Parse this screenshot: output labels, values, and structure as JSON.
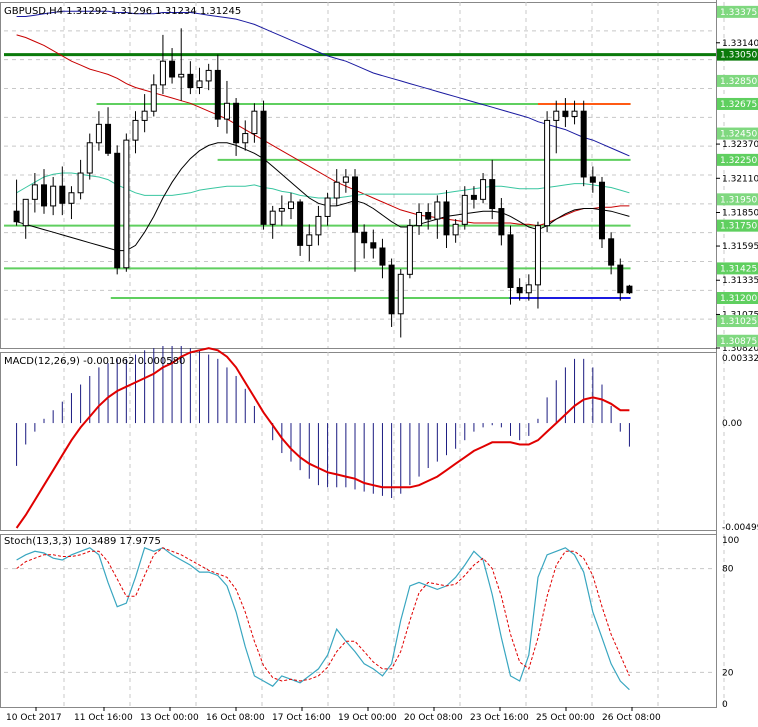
{
  "chart_data": [
    {
      "type": "candlestick",
      "title": "GBPUSD,H4  1.31292 1.31296 1.31234 1.31245",
      "symbol": "GBPUSD,H4",
      "ohlc_header": "1.31292 1.31296 1.31234 1.31245",
      "ylim": [
        1.3082,
        1.3345
      ],
      "y_ticks": [
        "1.33140",
        "1.32370",
        "1.32110",
        "1.31850",
        "1.31595",
        "1.31335",
        "1.31075",
        "1.30820"
      ],
      "level_labels": [
        {
          "label": "1.33375",
          "color": "#7fd87f",
          "drawn": false
        },
        {
          "label": "1.33050",
          "color": "#0a7a0a",
          "drawn": true
        },
        {
          "label": "1.32850",
          "color": "#7fd87f",
          "drawn": false
        },
        {
          "label": "1.32675",
          "color": "#5fcf5f",
          "drawn": true
        },
        {
          "label": "1.32450",
          "color": "#7fd87f",
          "drawn": false
        },
        {
          "label": "1.32250",
          "color": "#5fcf5f",
          "drawn": true
        },
        {
          "label": "1.31950",
          "color": "#7fd87f",
          "drawn": false
        },
        {
          "label": "1.31750",
          "color": "#5fcf5f",
          "drawn": true
        },
        {
          "label": "1.31425",
          "color": "#5fcf5f",
          "drawn": true
        },
        {
          "label": "1.31200",
          "color": "#5fcf5f",
          "drawn": true
        },
        {
          "label": "1.31025",
          "color": "#7fd87f",
          "drawn": false
        },
        {
          "label": "1.30875",
          "color": "#7fd87f",
          "drawn": false
        }
      ],
      "segments": [
        {
          "y": 1.3305,
          "x0": 0,
          "x1": 1.0,
          "color": "#0a7a0a"
        },
        {
          "y": 1.32675,
          "x0": 0.13,
          "x1": 0.88,
          "color": "#5fcf5f"
        },
        {
          "y": 1.32675,
          "x0": 0.75,
          "x1": 0.88,
          "color": "#ff5a14"
        },
        {
          "y": 1.3225,
          "x0": 0.3,
          "x1": 0.88,
          "color": "#5fcf5f"
        },
        {
          "y": 1.3175,
          "x0": 0.0,
          "x1": 0.88,
          "color": "#5fcf5f"
        },
        {
          "y": 1.31425,
          "x0": 0.0,
          "x1": 0.88,
          "color": "#5fcf5f"
        },
        {
          "y": 1.312,
          "x0": 0.15,
          "x1": 0.88,
          "color": "#5fcf5f"
        },
        {
          "y": 1.312,
          "x0": 0.71,
          "x1": 0.88,
          "color": "#1a1ae0"
        }
      ],
      "candles": [
        [
          1.3186,
          1.321,
          1.3178,
          1.3175
        ],
        [
          1.3175,
          1.318,
          1.3195,
          1.3165
        ],
        [
          1.3195,
          1.3215,
          1.3206,
          1.3185
        ],
        [
          1.3206,
          1.3218,
          1.319,
          1.3184
        ],
        [
          1.319,
          1.3212,
          1.3205,
          1.3183
        ],
        [
          1.3205,
          1.322,
          1.3192,
          1.3183
        ],
        [
          1.3192,
          1.3205,
          1.32,
          1.318
        ],
        [
          1.32,
          1.3225,
          1.3215,
          1.3195
        ],
        [
          1.3215,
          1.3245,
          1.3238,
          1.321
        ],
        [
          1.3238,
          1.3262,
          1.3252,
          1.3232
        ],
        [
          1.3252,
          1.3265,
          1.323,
          1.3228
        ],
        [
          1.323,
          1.3236,
          1.3143,
          1.3138
        ],
        [
          1.3143,
          1.3245,
          1.324,
          1.314
        ],
        [
          1.324,
          1.3262,
          1.3255,
          1.323
        ],
        [
          1.3255,
          1.3275,
          1.3262,
          1.3246
        ],
        [
          1.3262,
          1.329,
          1.3282,
          1.3258
        ],
        [
          1.3282,
          1.332,
          1.33,
          1.3275
        ],
        [
          1.33,
          1.331,
          1.3288,
          1.3283
        ],
        [
          1.3288,
          1.3325,
          1.329,
          1.327
        ],
        [
          1.329,
          1.33,
          1.328,
          1.3275
        ],
        [
          1.328,
          1.3295,
          1.3285,
          1.3275
        ],
        [
          1.3285,
          1.3298,
          1.3293,
          1.3278
        ],
        [
          1.3293,
          1.3305,
          1.3256,
          1.325
        ],
        [
          1.3256,
          1.3285,
          1.3268,
          1.3245
        ],
        [
          1.3268,
          1.3272,
          1.3238,
          1.3228
        ],
        [
          1.3238,
          1.3255,
          1.3245,
          1.3232
        ],
        [
          1.3245,
          1.3268,
          1.3262,
          1.3238
        ],
        [
          1.3262,
          1.327,
          1.3176,
          1.3172
        ],
        [
          1.3176,
          1.319,
          1.3186,
          1.3165
        ],
        [
          1.3186,
          1.3198,
          1.3188,
          1.3175
        ],
        [
          1.3188,
          1.32,
          1.3193,
          1.318
        ],
        [
          1.3193,
          1.3195,
          1.316,
          1.3152
        ],
        [
          1.316,
          1.3176,
          1.3168,
          1.3148
        ],
        [
          1.3168,
          1.319,
          1.3182,
          1.316
        ],
        [
          1.3182,
          1.32,
          1.3196,
          1.3175
        ],
        [
          1.3196,
          1.3218,
          1.3208,
          1.319
        ],
        [
          1.3208,
          1.3218,
          1.3212,
          1.32
        ],
        [
          1.3212,
          1.3218,
          1.317,
          1.314
        ],
        [
          1.317,
          1.3176,
          1.3162,
          1.315
        ],
        [
          1.3162,
          1.3172,
          1.3158,
          1.315
        ],
        [
          1.3158,
          1.3165,
          1.3145,
          1.3135
        ],
        [
          1.3145,
          1.315,
          1.3108,
          1.3098
        ],
        [
          1.3108,
          1.3142,
          1.3138,
          1.309
        ],
        [
          1.3138,
          1.318,
          1.3175,
          1.3135
        ],
        [
          1.3175,
          1.3192,
          1.3185,
          1.3168
        ],
        [
          1.3185,
          1.3192,
          1.318,
          1.3172
        ],
        [
          1.318,
          1.3198,
          1.3193,
          1.3165
        ],
        [
          1.3193,
          1.3202,
          1.3168,
          1.3158
        ],
        [
          1.3168,
          1.318,
          1.3176,
          1.3162
        ],
        [
          1.3176,
          1.3205,
          1.3198,
          1.3172
        ],
        [
          1.3198,
          1.3205,
          1.3195,
          1.3188
        ],
        [
          1.3195,
          1.3215,
          1.321,
          1.3192
        ],
        [
          1.321,
          1.3225,
          1.3188,
          1.318
        ],
        [
          1.3188,
          1.3196,
          1.3168,
          1.316
        ],
        [
          1.3168,
          1.3175,
          1.3128,
          1.3115
        ],
        [
          1.3128,
          1.3135,
          1.3124,
          1.3118
        ],
        [
          1.3124,
          1.3138,
          1.313,
          1.3118
        ],
        [
          1.313,
          1.3178,
          1.3175,
          1.3112
        ],
        [
          1.3175,
          1.3262,
          1.3255,
          1.317
        ],
        [
          1.3255,
          1.327,
          1.3262,
          1.323
        ],
        [
          1.3262,
          1.3272,
          1.3258,
          1.325
        ],
        [
          1.3258,
          1.327,
          1.3262,
          1.3252
        ],
        [
          1.3262,
          1.327,
          1.3212,
          1.3205
        ],
        [
          1.3212,
          1.322,
          1.3208,
          1.32
        ],
        [
          1.3208,
          1.3212,
          1.3165,
          1.3158
        ],
        [
          1.3165,
          1.317,
          1.3145,
          1.3138
        ],
        [
          1.3145,
          1.315,
          1.3124,
          1.3118
        ],
        [
          1.3129,
          1.313,
          1.3124,
          1.3123
        ]
      ],
      "ma_black": [
        1.3178,
        1.3176,
        1.3174,
        1.3172,
        1.317,
        1.3168,
        1.3166,
        1.3164,
        1.3162,
        1.316,
        1.3158,
        1.3156,
        1.3156,
        1.316,
        1.317,
        1.3182,
        1.3196,
        1.3208,
        1.3218,
        1.3226,
        1.3232,
        1.3236,
        1.3238,
        1.3238,
        1.3236,
        1.3233,
        1.323,
        1.3226,
        1.322,
        1.3214,
        1.3208,
        1.3202,
        1.3196,
        1.3192,
        1.319,
        1.319,
        1.3192,
        1.3194,
        1.3192,
        1.3188,
        1.3183,
        1.3178,
        1.3174,
        1.3174,
        1.3176,
        1.3178,
        1.318,
        1.3182,
        1.3183,
        1.3184,
        1.3185,
        1.3186,
        1.3186,
        1.3185,
        1.3182,
        1.3178,
        1.3174,
        1.3172,
        1.3175,
        1.318,
        1.3184,
        1.3187,
        1.3188,
        1.3188,
        1.3187,
        1.3186,
        1.3184,
        1.3182
      ],
      "ma_red": [
        1.332,
        1.3318,
        1.3315,
        1.3312,
        1.3308,
        1.3304,
        1.33,
        1.3297,
        1.3294,
        1.3292,
        1.329,
        1.3287,
        1.3283,
        1.328,
        1.3278,
        1.3276,
        1.3274,
        1.3272,
        1.327,
        1.3268,
        1.3265,
        1.3262,
        1.3259,
        1.3256,
        1.3252,
        1.3248,
        1.3244,
        1.324,
        1.3236,
        1.3232,
        1.3228,
        1.3224,
        1.322,
        1.3216,
        1.3212,
        1.3208,
        1.3205,
        1.3202,
        1.3199,
        1.3196,
        1.3193,
        1.319,
        1.3187,
        1.3185,
        1.3183,
        1.3182,
        1.3181,
        1.318,
        1.3179,
        1.3178,
        1.3177,
        1.3177,
        1.3177,
        1.3177,
        1.3177,
        1.3176,
        1.3176,
        1.3175,
        1.3177,
        1.318,
        1.3183,
        1.3186,
        1.3188,
        1.3188,
        1.3189,
        1.3189,
        1.319,
        1.319
      ],
      "ma_blue": [
        1.3334,
        1.3334,
        1.3335,
        1.3336,
        1.3337,
        1.3338,
        1.3338,
        1.3338,
        1.3338,
        1.3338,
        1.3338,
        1.3337,
        1.3337,
        1.3336,
        1.3336,
        1.3336,
        1.3337,
        1.3337,
        1.3337,
        1.3337,
        1.3336,
        1.3335,
        1.3334,
        1.3333,
        1.3332,
        1.333,
        1.3328,
        1.3325,
        1.3322,
        1.3319,
        1.3316,
        1.3313,
        1.331,
        1.3307,
        1.3304,
        1.3302,
        1.33,
        1.3297,
        1.3294,
        1.3291,
        1.3289,
        1.3287,
        1.3285,
        1.3283,
        1.3281,
        1.3279,
        1.3277,
        1.3275,
        1.3273,
        1.3271,
        1.3269,
        1.3267,
        1.3265,
        1.3263,
        1.3261,
        1.3259,
        1.3257,
        1.3254,
        1.3252,
        1.325,
        1.3248,
        1.3245,
        1.3242,
        1.324,
        1.3237,
        1.3234,
        1.3231,
        1.3228
      ],
      "ma_green": [
        1.32,
        1.3204,
        1.3208,
        1.3212,
        1.3214,
        1.3215,
        1.3215,
        1.3214,
        1.3213,
        1.3212,
        1.321,
        1.3206,
        1.3203,
        1.32,
        1.3198,
        1.3198,
        1.3198,
        1.3198,
        1.3199,
        1.32,
        1.3202,
        1.3203,
        1.3204,
        1.3205,
        1.3205,
        1.3205,
        1.3206,
        1.3204,
        1.3203,
        1.3201,
        1.32,
        1.3198,
        1.3197,
        1.3196,
        1.3196,
        1.3196,
        1.3197,
        1.3198,
        1.3199,
        1.3199,
        1.3199,
        1.3199,
        1.3199,
        1.3199,
        1.3199,
        1.3199,
        1.3199,
        1.32,
        1.3201,
        1.3202,
        1.3203,
        1.3204,
        1.3205,
        1.3205,
        1.3204,
        1.3203,
        1.3203,
        1.3203,
        1.3204,
        1.3205,
        1.3206,
        1.3207,
        1.3207,
        1.3206,
        1.3205,
        1.3204,
        1.3202,
        1.32
      ]
    },
    {
      "type": "bar",
      "title": "MACD(12,26,9) -0.001062 0.000580",
      "indicator": "MACD(12,26,9)",
      "values_text": "-0.001062 0.000580",
      "ylim": [
        -0.004995,
        0.00332
      ],
      "y_ticks": [
        "0.00332",
        "0.00",
        "-0.004995"
      ],
      "histogram": [
        -0.002,
        -0.001,
        -0.0004,
        0.0002,
        0.0006,
        0.001,
        0.0014,
        0.0018,
        0.0022,
        0.0026,
        0.0028,
        0.003,
        0.003,
        0.0032,
        0.0034,
        0.0035,
        0.0036,
        0.0036,
        0.0036,
        0.0035,
        0.0034,
        0.0032,
        0.003,
        0.0026,
        0.0022,
        0.0016,
        0.0008,
        0.0,
        -0.0008,
        -0.0014,
        -0.0018,
        -0.0022,
        -0.0026,
        -0.0029,
        -0.003,
        -0.003,
        -0.003,
        -0.0031,
        -0.0032,
        -0.0033,
        -0.0034,
        -0.0035,
        -0.0033,
        -0.0029,
        -0.0025,
        -0.0021,
        -0.0018,
        -0.0015,
        -0.0012,
        -0.0008,
        -0.0004,
        -0.0002,
        -0.0001,
        -0.0002,
        -0.0006,
        -0.0008,
        -0.0006,
        0.0002,
        0.0012,
        0.002,
        0.0026,
        0.003,
        0.003,
        0.0026,
        0.0018,
        0.0008,
        -0.0004,
        -0.0011
      ],
      "signal": [
        -0.0049,
        -0.0043,
        -0.0036,
        -0.0029,
        -0.0022,
        -0.0015,
        -0.0008,
        -0.0002,
        0.0003,
        0.0008,
        0.0012,
        0.0015,
        0.0017,
        0.0019,
        0.0021,
        0.0023,
        0.0026,
        0.0028,
        0.0031,
        0.0033,
        0.0034,
        0.0035,
        0.0034,
        0.0031,
        0.0026,
        0.0019,
        0.0012,
        0.0005,
        -0.0001,
        -0.0007,
        -0.0012,
        -0.0016,
        -0.0019,
        -0.0021,
        -0.0023,
        -0.0024,
        -0.0025,
        -0.0026,
        -0.0028,
        -0.0029,
        -0.003,
        -0.003,
        -0.003,
        -0.003,
        -0.0029,
        -0.0027,
        -0.0025,
        -0.0022,
        -0.0019,
        -0.0016,
        -0.0013,
        -0.0011,
        -0.0009,
        -0.0009,
        -0.0009,
        -0.001,
        -0.001,
        -0.0008,
        -0.0004,
        0.0,
        0.0004,
        0.0008,
        0.0011,
        0.0012,
        0.0011,
        0.0009,
        0.0006,
        0.0006
      ]
    },
    {
      "type": "line",
      "title": "Stoch(13,3,3) 10.3489 17.9775",
      "indicator": "Stoch(13,3,3)",
      "values_text": "10.3489 17.9775",
      "ylim": [
        0,
        100
      ],
      "y_ticks": [
        "100",
        "80",
        "20",
        "0"
      ],
      "main": [
        85,
        88,
        90,
        89,
        86,
        85,
        88,
        90,
        92,
        88,
        72,
        58,
        60,
        75,
        92,
        90,
        92,
        88,
        85,
        82,
        78,
        78,
        76,
        70,
        55,
        35,
        18,
        15,
        12,
        18,
        16,
        14,
        18,
        22,
        30,
        45,
        38,
        32,
        25,
        22,
        18,
        25,
        50,
        70,
        72,
        70,
        68,
        70,
        75,
        82,
        90,
        85,
        65,
        40,
        18,
        15,
        30,
        75,
        88,
        90,
        92,
        88,
        78,
        55,
        40,
        25,
        15,
        10
      ],
      "signal": [
        80,
        84,
        86,
        88,
        88,
        87,
        87,
        88,
        90,
        90,
        84,
        74,
        64,
        64,
        76,
        88,
        92,
        90,
        88,
        85,
        82,
        79,
        77,
        75,
        68,
        55,
        38,
        24,
        17,
        15,
        16,
        15,
        16,
        18,
        23,
        32,
        38,
        38,
        32,
        26,
        22,
        22,
        32,
        50,
        66,
        72,
        71,
        70,
        71,
        76,
        82,
        86,
        80,
        64,
        42,
        26,
        22,
        40,
        64,
        82,
        90,
        90,
        86,
        76,
        58,
        42,
        30,
        18
      ]
    }
  ],
  "x_labels": [
    "10 Oct 2017",
    "11 Oct 16:00",
    "13 Oct 00:00",
    "16 Oct 08:00",
    "17 Oct 16:00",
    "19 Oct 00:00",
    "20 Oct 08:00",
    "23 Oct 16:00",
    "25 Oct 00:00",
    "26 Oct 08:00"
  ],
  "colors": {
    "bull": "#000000",
    "bear": "#000000",
    "grid": "#c8c8c8",
    "ma_black": "#000000",
    "ma_red": "#c80000",
    "ma_blue": "#1a1aa0",
    "ma_green": "#39c6a0",
    "macd_hist": "#1a1a80",
    "macd_signal": "#e00000",
    "stoch_main": "#39a6c0",
    "stoch_signal": "#e00000"
  }
}
